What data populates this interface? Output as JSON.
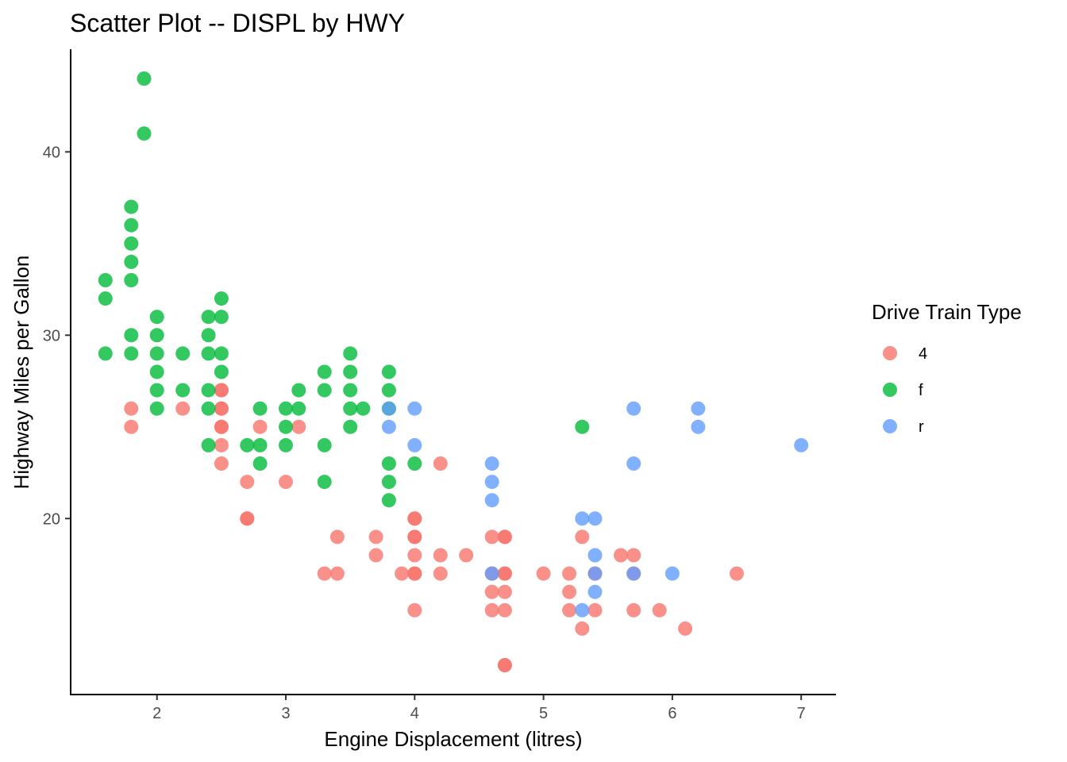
{
  "chart_data": {
    "type": "scatter",
    "title": "Scatter Plot -- DISPL by HWY",
    "xlabel": "Engine Displacement (litres)",
    "ylabel": "Highway Miles per Gallon",
    "xlim": [
      1.33,
      7.27
    ],
    "ylim": [
      10.4,
      45.6
    ],
    "x_ticks": [
      2,
      3,
      4,
      5,
      6,
      7
    ],
    "y_ticks": [
      20,
      30,
      40
    ],
    "grid": false,
    "legend": {
      "title": "Drive Train Type",
      "position": "right"
    },
    "point_alpha": 0.8,
    "series": [
      {
        "name": "4",
        "color": "#F8766D",
        "points": [
          [
            1.8,
            26
          ],
          [
            1.8,
            25
          ],
          [
            2.2,
            26
          ],
          [
            2.5,
            27
          ],
          [
            2.5,
            26
          ],
          [
            2.5,
            25
          ],
          [
            2.5,
            24
          ],
          [
            2.5,
            23
          ],
          [
            2.5,
            27
          ],
          [
            2.5,
            26
          ],
          [
            2.5,
            25
          ],
          [
            2.7,
            22
          ],
          [
            2.7,
            20
          ],
          [
            2.7,
            20
          ],
          [
            2.8,
            25
          ],
          [
            3.0,
            22
          ],
          [
            3.1,
            25
          ],
          [
            3.3,
            17
          ],
          [
            3.4,
            19
          ],
          [
            3.4,
            17
          ],
          [
            3.7,
            19
          ],
          [
            3.7,
            18
          ],
          [
            3.9,
            17
          ],
          [
            4.0,
            20
          ],
          [
            4.0,
            19
          ],
          [
            4.0,
            18
          ],
          [
            4.0,
            17
          ],
          [
            4.0,
            15
          ],
          [
            4.0,
            20
          ],
          [
            4.0,
            19
          ],
          [
            4.0,
            17
          ],
          [
            4.2,
            23
          ],
          [
            4.2,
            18
          ],
          [
            4.2,
            17
          ],
          [
            4.4,
            18
          ],
          [
            4.6,
            19
          ],
          [
            4.6,
            17
          ],
          [
            4.6,
            16
          ],
          [
            4.6,
            15
          ],
          [
            4.7,
            19
          ],
          [
            4.7,
            17
          ],
          [
            4.7,
            16
          ],
          [
            4.7,
            15
          ],
          [
            4.7,
            12
          ],
          [
            4.7,
            12
          ],
          [
            4.7,
            19
          ],
          [
            4.7,
            17
          ],
          [
            5.0,
            17
          ],
          [
            5.2,
            17
          ],
          [
            5.2,
            16
          ],
          [
            5.2,
            15
          ],
          [
            5.3,
            19
          ],
          [
            5.3,
            14
          ],
          [
            5.4,
            17
          ],
          [
            5.4,
            15
          ],
          [
            5.6,
            18
          ],
          [
            5.7,
            18
          ],
          [
            5.7,
            17
          ],
          [
            5.7,
            15
          ],
          [
            5.9,
            15
          ],
          [
            6.1,
            14
          ],
          [
            6.5,
            17
          ]
        ]
      },
      {
        "name": "f",
        "color": "#00BA38",
        "points": [
          [
            1.6,
            33
          ],
          [
            1.6,
            32
          ],
          [
            1.6,
            29
          ],
          [
            1.8,
            37
          ],
          [
            1.8,
            36
          ],
          [
            1.8,
            35
          ],
          [
            1.8,
            34
          ],
          [
            1.8,
            33
          ],
          [
            1.8,
            30
          ],
          [
            1.8,
            29
          ],
          [
            1.9,
            44
          ],
          [
            1.9,
            41
          ],
          [
            2.0,
            31
          ],
          [
            2.0,
            30
          ],
          [
            2.0,
            29
          ],
          [
            2.0,
            28
          ],
          [
            2.0,
            27
          ],
          [
            2.0,
            26
          ],
          [
            2.2,
            29
          ],
          [
            2.2,
            27
          ],
          [
            2.4,
            31
          ],
          [
            2.4,
            30
          ],
          [
            2.4,
            29
          ],
          [
            2.4,
            27
          ],
          [
            2.4,
            26
          ],
          [
            2.4,
            24
          ],
          [
            2.5,
            32
          ],
          [
            2.5,
            31
          ],
          [
            2.5,
            29
          ],
          [
            2.5,
            28
          ],
          [
            2.7,
            24
          ],
          [
            2.8,
            26
          ],
          [
            2.8,
            24
          ],
          [
            2.8,
            23
          ],
          [
            3.0,
            26
          ],
          [
            3.0,
            25
          ],
          [
            3.0,
            24
          ],
          [
            3.1,
            27
          ],
          [
            3.1,
            26
          ],
          [
            3.3,
            28
          ],
          [
            3.3,
            27
          ],
          [
            3.3,
            24
          ],
          [
            3.3,
            22
          ],
          [
            3.5,
            29
          ],
          [
            3.5,
            28
          ],
          [
            3.5,
            27
          ],
          [
            3.5,
            26
          ],
          [
            3.5,
            25
          ],
          [
            3.6,
            26
          ],
          [
            3.8,
            28
          ],
          [
            3.8,
            27
          ],
          [
            3.8,
            26
          ],
          [
            3.8,
            23
          ],
          [
            3.8,
            22
          ],
          [
            3.8,
            21
          ],
          [
            4.0,
            23
          ],
          [
            5.3,
            25
          ]
        ]
      },
      {
        "name": "r",
        "color": "#619CFF",
        "points": [
          [
            3.8,
            26
          ],
          [
            3.8,
            25
          ],
          [
            4.0,
            26
          ],
          [
            4.0,
            24
          ],
          [
            4.6,
            23
          ],
          [
            4.6,
            22
          ],
          [
            4.6,
            21
          ],
          [
            4.6,
            17
          ],
          [
            5.3,
            20
          ],
          [
            5.3,
            15
          ],
          [
            5.4,
            20
          ],
          [
            5.4,
            18
          ],
          [
            5.4,
            17
          ],
          [
            5.4,
            16
          ],
          [
            5.7,
            26
          ],
          [
            5.7,
            23
          ],
          [
            5.7,
            17
          ],
          [
            6.0,
            17
          ],
          [
            6.2,
            26
          ],
          [
            6.2,
            25
          ],
          [
            7.0,
            24
          ]
        ]
      }
    ]
  }
}
